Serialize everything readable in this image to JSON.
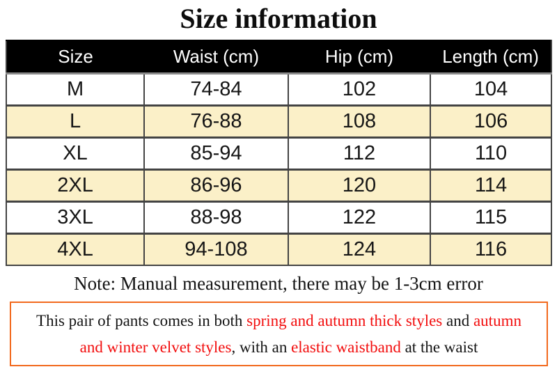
{
  "page": {
    "title": "Size information"
  },
  "colors": {
    "header_bg": "#000000",
    "header_text": "#ffffff",
    "row_bg": "#ffffff",
    "row_alt_bg": "#fbf0c8",
    "grid_border": "#434343",
    "header_underline": "#8a8a8a",
    "notice_border": "#f2691d",
    "highlight_red": "#f20d0d",
    "text": "#111111"
  },
  "table": {
    "headers": [
      "Size",
      "Waist (cm)",
      "Hip (cm)",
      "Length (cm)"
    ],
    "rows": [
      [
        "M",
        "74-84",
        "102",
        "104"
      ],
      [
        "L",
        "76-88",
        "108",
        "106"
      ],
      [
        "XL",
        "85-94",
        "112",
        "110"
      ],
      [
        "2XL",
        "86-96",
        "120",
        "114"
      ],
      [
        "3XL",
        "88-98",
        "122",
        "115"
      ],
      [
        "4XL",
        "94-108",
        "124",
        "116"
      ]
    ]
  },
  "note": {
    "text": "Note: Manual measurement, there may be 1-3cm error"
  },
  "notice": {
    "lines": [
      [
        {
          "text": "This pair of pants comes in both ",
          "highlight": false
        },
        {
          "text": "spring and autumn thick styles",
          "highlight": true
        },
        {
          "text": " and ",
          "highlight": false
        },
        {
          "text": "autumn",
          "highlight": true
        }
      ],
      [
        {
          "text": "and winter velvet styles",
          "highlight": true
        },
        {
          "text": ", with an ",
          "highlight": false
        },
        {
          "text": "elastic waistband",
          "highlight": true
        },
        {
          "text": " at the waist",
          "highlight": false
        }
      ]
    ]
  }
}
